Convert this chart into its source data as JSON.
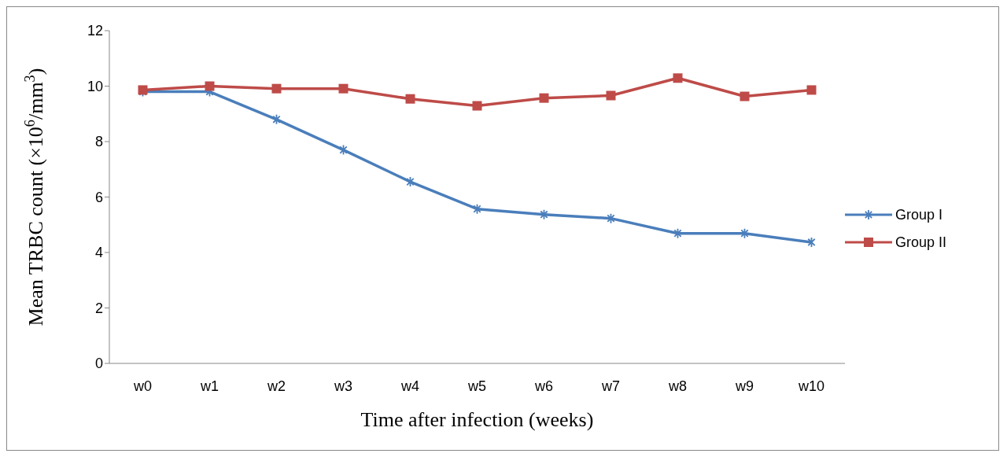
{
  "chart_data": {
    "type": "line",
    "xlabel": "Time after infection (weeks)",
    "ylabel": "Mean TRBC count (×10$^{6}$/mm$^{3}$)",
    "categories": [
      "w0",
      "w1",
      "w2",
      "w3",
      "w4",
      "w5",
      "w6",
      "w7",
      "w8",
      "w9",
      "w10"
    ],
    "ylim": [
      0,
      12
    ],
    "yticks": [
      0,
      2,
      4,
      6,
      8,
      10,
      12
    ],
    "grid": false,
    "legend": "right",
    "line_style": "solid",
    "series": [
      {
        "name": "Group I",
        "color": "#4a7ebb",
        "marker": "cross",
        "values": [
          9.8,
          9.8,
          8.8,
          7.7,
          6.55,
          5.57,
          5.37,
          5.23,
          4.69,
          4.69,
          4.37
        ]
      },
      {
        "name": "Group II",
        "color": "#be4b48",
        "marker": "square",
        "values": [
          9.86,
          10.0,
          9.91,
          9.91,
          9.54,
          9.29,
          9.57,
          9.66,
          10.29,
          9.63,
          9.86
        ]
      }
    ]
  }
}
